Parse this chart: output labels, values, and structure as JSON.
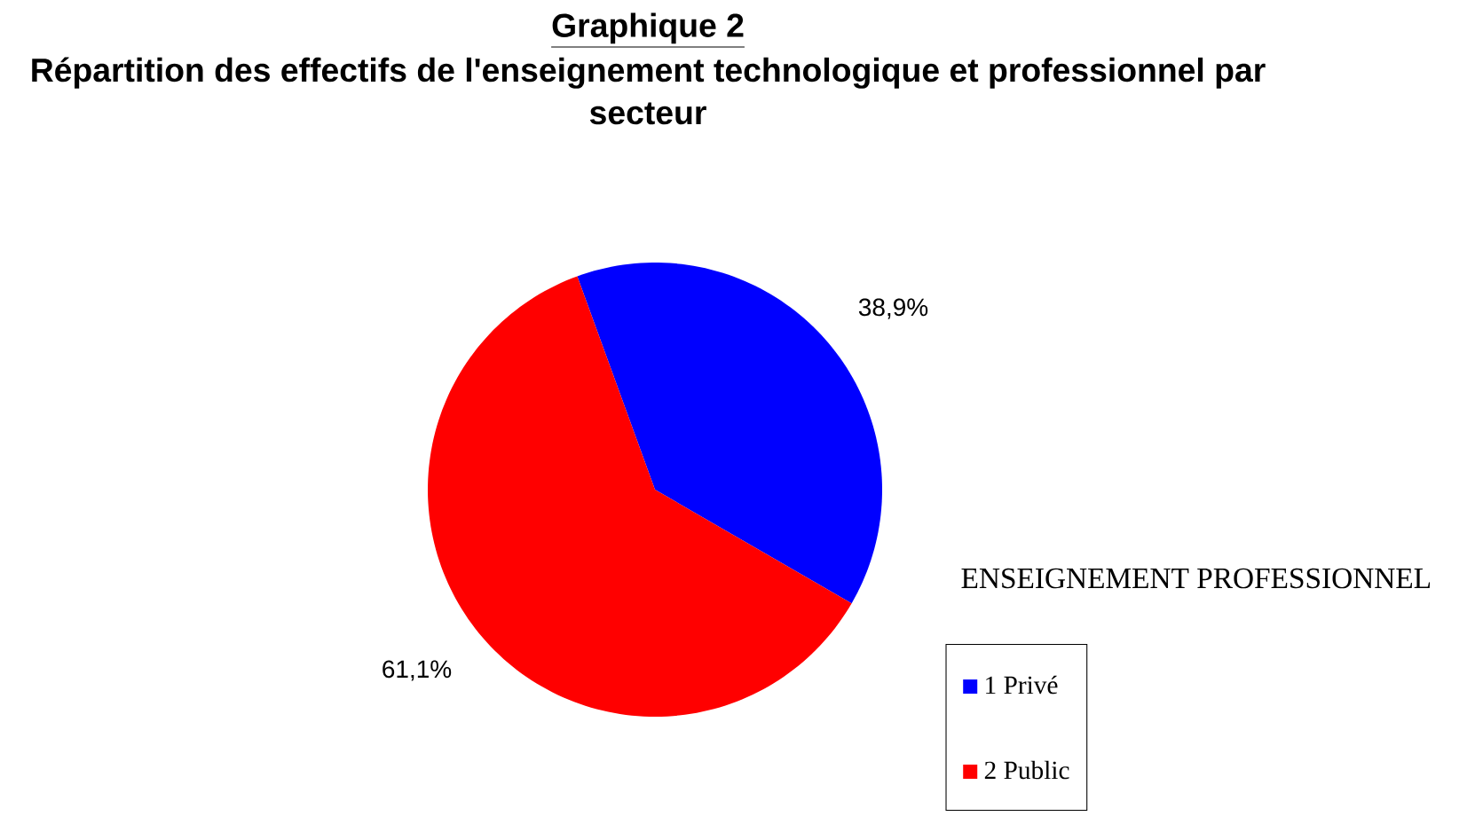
{
  "chart_data": {
    "type": "pie",
    "title": "Graphique 2",
    "subtitle": "Répartition des effectifs de l'enseignement technologique et professionnel par secteur",
    "legend_title": "ENSEIGNEMENT PROFESSIONNEL",
    "categories": [
      "1 Privé",
      "2 Public"
    ],
    "values": [
      38.9,
      61.1
    ],
    "value_labels": [
      "38,9%",
      "61,1%"
    ],
    "colors": [
      "#0000ff",
      "#ff0000"
    ],
    "legend": "right"
  }
}
